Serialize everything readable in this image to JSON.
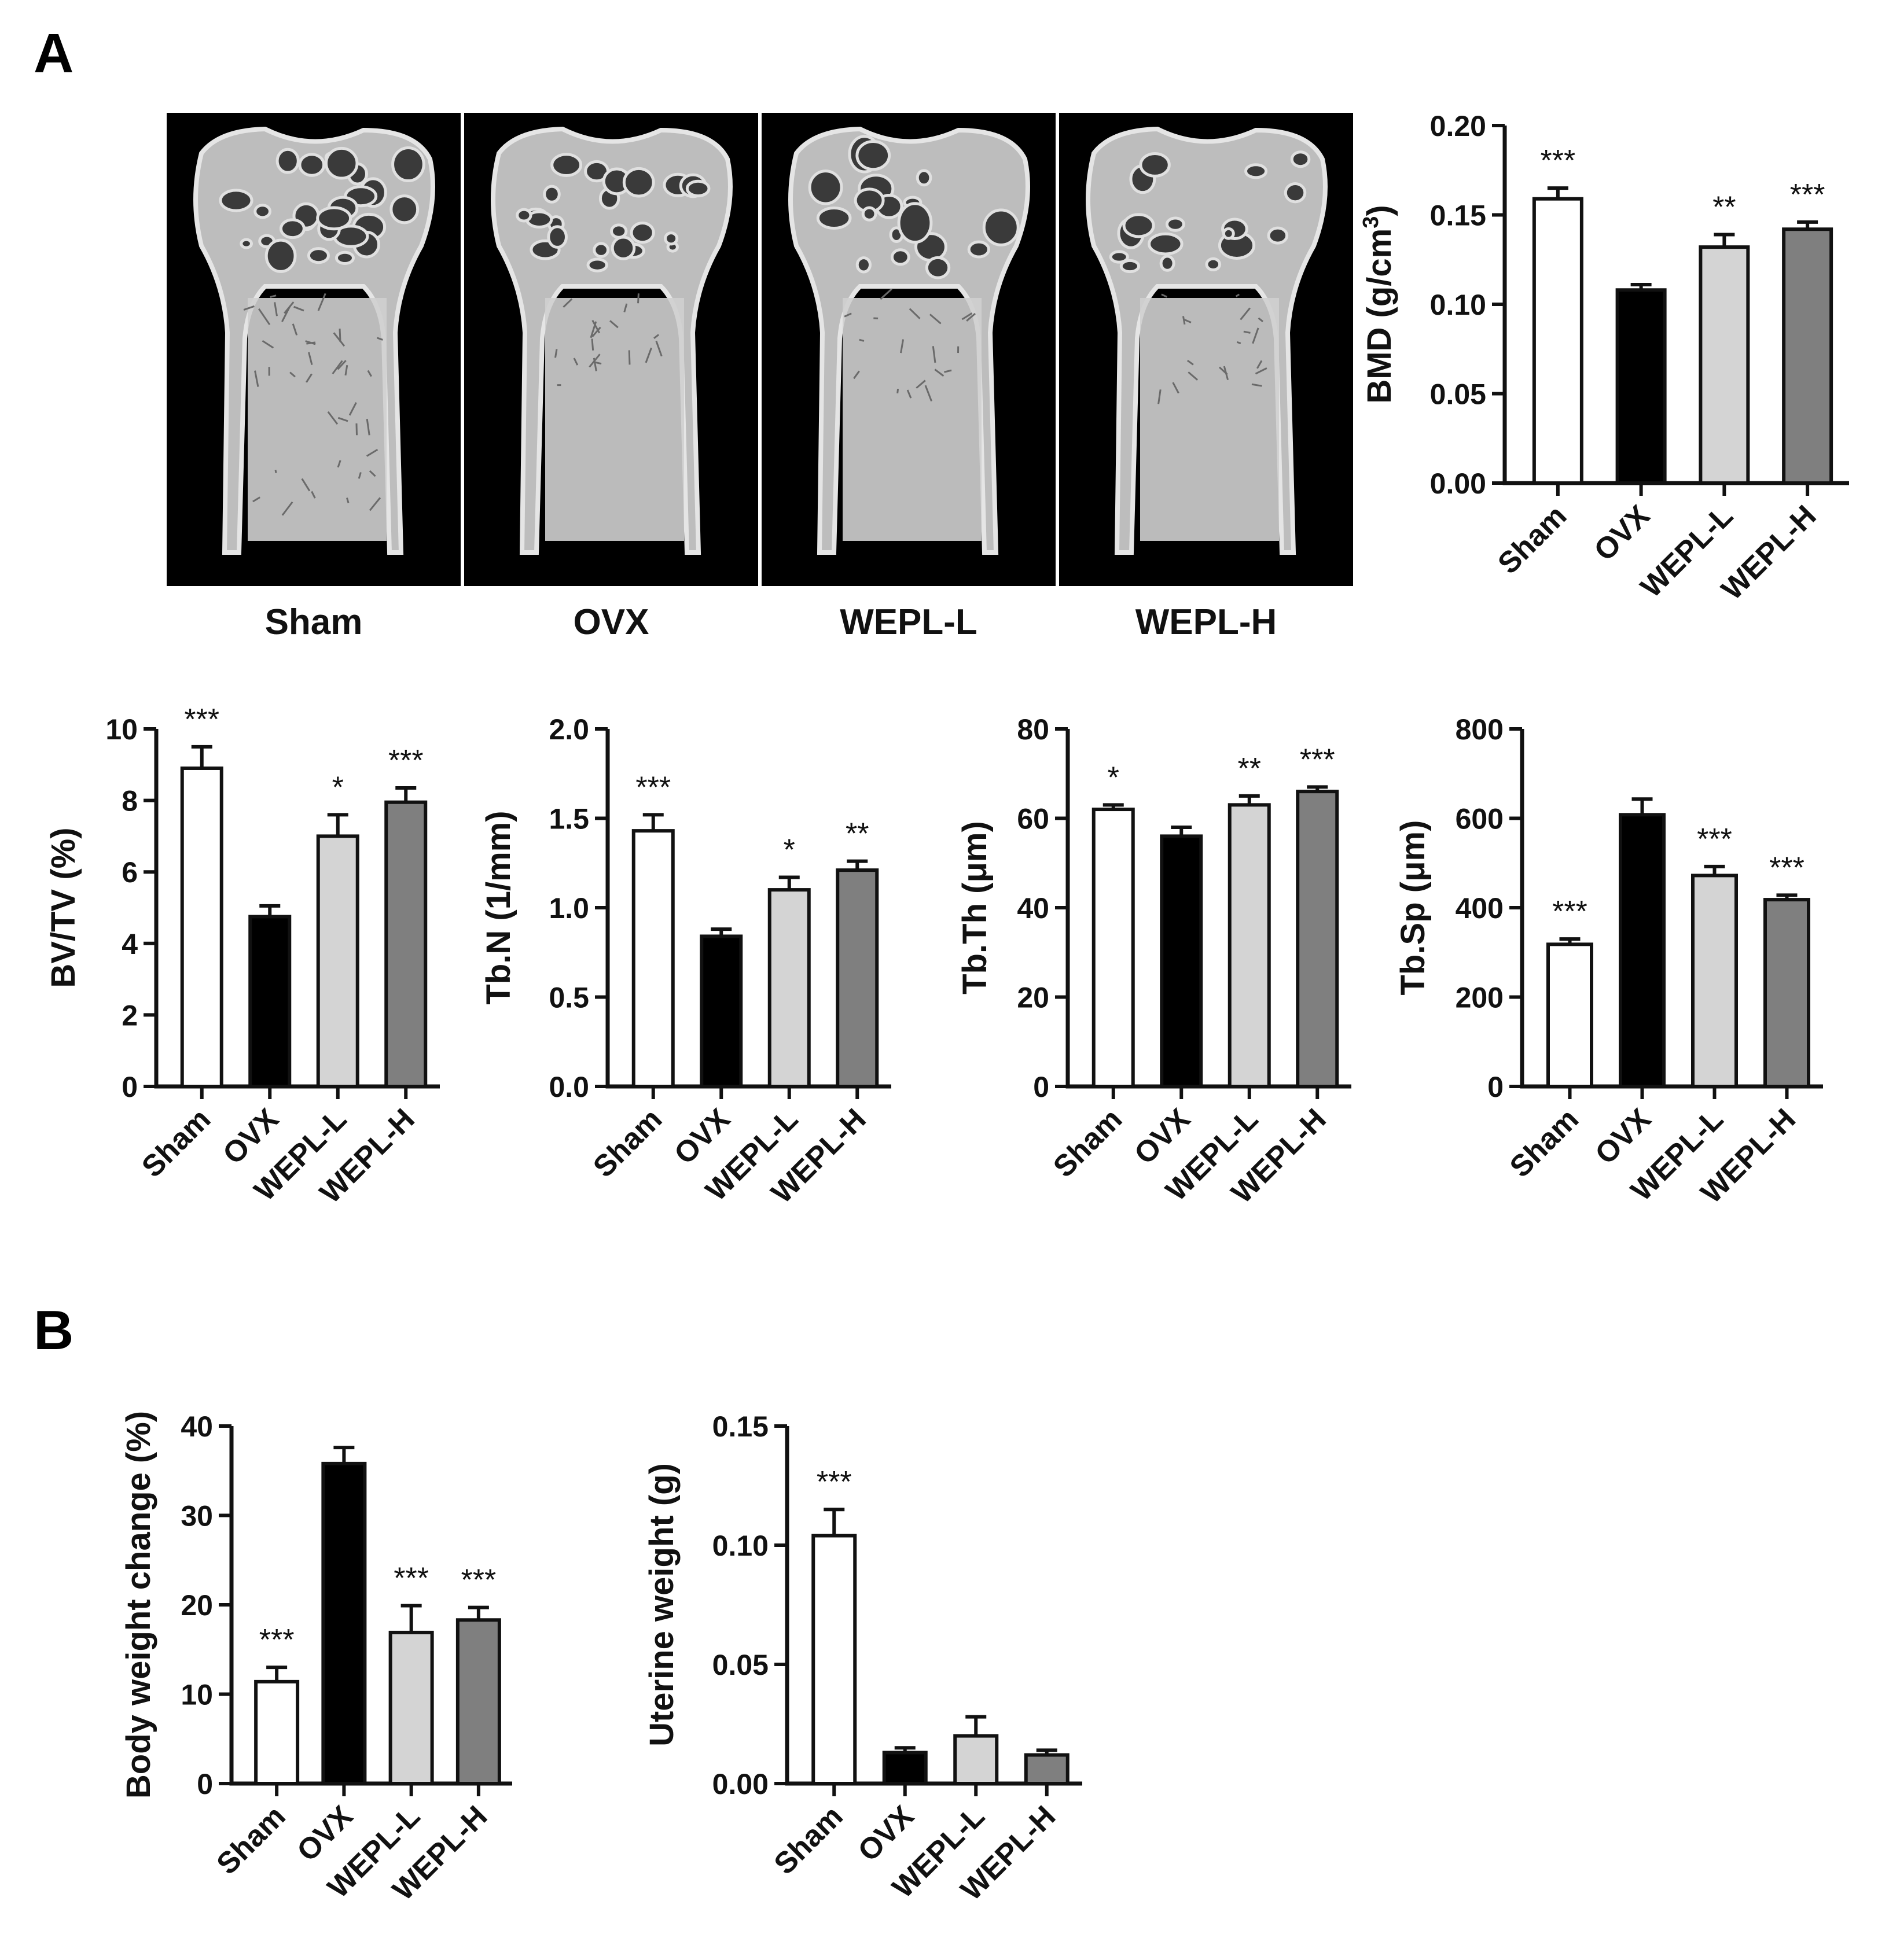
{
  "panels": {
    "a": "A",
    "b": "B"
  },
  "image_labels": [
    "Sham",
    "OVX",
    "WEPL-L",
    "WEPL-H"
  ],
  "colors": {
    "Sham": "#ffffff",
    "OVX": "#000000",
    "WEPL-L": "#d4d4d4",
    "WEPL-H": "#7f7f7f"
  },
  "chart_data": [
    {
      "id": "bmd",
      "type": "bar",
      "categories": [
        "Sham",
        "OVX",
        "WEPL-L",
        "WEPL-H"
      ],
      "values": [
        0.159,
        0.108,
        0.132,
        0.142
      ],
      "errors": [
        0.006,
        0.003,
        0.007,
        0.004
      ],
      "significance": [
        "***",
        "",
        "**",
        "***"
      ],
      "ylabel": "BMD (g/cm",
      "ylabel_sup": "3",
      "ylabel_end": ")",
      "ylim": [
        0,
        0.2
      ],
      "yticks": [
        0,
        0.05,
        0.1,
        0.15,
        0.2
      ],
      "ytick_labels": [
        "0.00",
        "0.05",
        "0.10",
        "0.15",
        "0.20"
      ]
    },
    {
      "id": "bvtv",
      "type": "bar",
      "categories": [
        "Sham",
        "OVX",
        "WEPL-L",
        "WEPL-H"
      ],
      "values": [
        8.9,
        4.75,
        7.0,
        7.95
      ],
      "errors": [
        0.6,
        0.3,
        0.6,
        0.4
      ],
      "significance": [
        "***",
        "",
        "*",
        "***"
      ],
      "ylabel": "BV/TV (%)",
      "ylim": [
        0,
        10
      ],
      "yticks": [
        0,
        2,
        4,
        6,
        8,
        10
      ],
      "ytick_labels": [
        "0",
        "2",
        "4",
        "6",
        "8",
        "10"
      ]
    },
    {
      "id": "tbn",
      "type": "bar",
      "categories": [
        "Sham",
        "OVX",
        "WEPL-L",
        "WEPL-H"
      ],
      "values": [
        1.43,
        0.84,
        1.1,
        1.21
      ],
      "errors": [
        0.09,
        0.04,
        0.07,
        0.05
      ],
      "significance": [
        "***",
        "",
        "*",
        "**"
      ],
      "ylabel": "Tb.N (1/mm)",
      "ylim": [
        0,
        2
      ],
      "yticks": [
        0,
        0.5,
        1,
        1.5,
        2
      ],
      "ytick_labels": [
        "0.0",
        "0.5",
        "1.0",
        "1.5",
        "2.0"
      ]
    },
    {
      "id": "tbth",
      "type": "bar",
      "categories": [
        "Sham",
        "OVX",
        "WEPL-L",
        "WEPL-H"
      ],
      "values": [
        62,
        56,
        63,
        66
      ],
      "errors": [
        1,
        2,
        2,
        1
      ],
      "significance": [
        "*",
        "",
        "**",
        "***"
      ],
      "ylabel": "Tb.Th (μm)",
      "ylim": [
        0,
        80
      ],
      "yticks": [
        0,
        20,
        40,
        60,
        80
      ],
      "ytick_labels": [
        "0",
        "20",
        "40",
        "60",
        "80"
      ]
    },
    {
      "id": "tbsp",
      "type": "bar",
      "categories": [
        "Sham",
        "OVX",
        "WEPL-L",
        "WEPL-H"
      ],
      "values": [
        318,
        608,
        472,
        418
      ],
      "errors": [
        12,
        35,
        20,
        10
      ],
      "significance": [
        "***",
        "",
        "***",
        "***"
      ],
      "ylabel": "Tb.Sp (μm)",
      "ylim": [
        0,
        800
      ],
      "yticks": [
        0,
        200,
        400,
        600,
        800
      ],
      "ytick_labels": [
        "0",
        "200",
        "400",
        "600",
        "800"
      ]
    },
    {
      "id": "bw",
      "type": "bar",
      "categories": [
        "Sham",
        "OVX",
        "WEPL-L",
        "WEPL-H"
      ],
      "values": [
        11.4,
        35.8,
        16.9,
        18.3
      ],
      "errors": [
        1.6,
        1.8,
        3.0,
        1.4
      ],
      "significance": [
        "***",
        "",
        "***",
        "***"
      ],
      "ylabel": "Body weight change (%)",
      "ylim": [
        0,
        40
      ],
      "yticks": [
        0,
        10,
        20,
        30,
        40
      ],
      "ytick_labels": [
        "0",
        "10",
        "20",
        "30",
        "40"
      ]
    },
    {
      "id": "uw",
      "type": "bar",
      "categories": [
        "Sham",
        "OVX",
        "WEPL-L",
        "WEPL-H"
      ],
      "values": [
        0.104,
        0.013,
        0.02,
        0.012
      ],
      "errors": [
        0.011,
        0.002,
        0.008,
        0.002
      ],
      "significance": [
        "***",
        "",
        "",
        ""
      ],
      "ylabel": "Uterine weight (g)",
      "ylim": [
        0,
        0.15
      ],
      "yticks": [
        0,
        0.05,
        0.1,
        0.15
      ],
      "ytick_labels": [
        "0.00",
        "0.05",
        "0.10",
        "0.15"
      ]
    }
  ]
}
